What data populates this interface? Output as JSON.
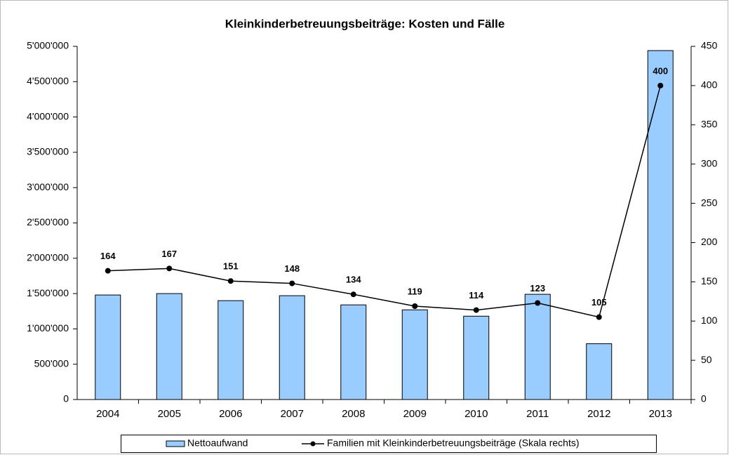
{
  "chart_data": {
    "type": "bar",
    "title": "Kleinkinderbetreuungsbeiträge: Kosten und Fälle",
    "categories": [
      "2004",
      "2005",
      "2006",
      "2007",
      "2008",
      "2009",
      "2010",
      "2011",
      "2012",
      "2013"
    ],
    "series": [
      {
        "name": "Nettoaufwand",
        "type": "bar",
        "color": "#99ccff",
        "axis": "y",
        "values": [
          1480000,
          1500000,
          1400000,
          1470000,
          1340000,
          1270000,
          1180000,
          1490000,
          790000,
          4940000
        ]
      },
      {
        "name": "Familien mit Kleinkinderbetreuungsbeiträge (Skala rechts)",
        "type": "line",
        "color": "#000000",
        "axis": "y2",
        "values": [
          164,
          167,
          151,
          148,
          134,
          119,
          114,
          123,
          105,
          400
        ]
      }
    ],
    "ylim": [
      0,
      5000000
    ],
    "yticks": [
      0,
      {
        "value": 500000,
        "label": "500'000"
      },
      {
        "value": 1000000,
        "label": "1'000'000"
      },
      {
        "value": 1500000,
        "label": "1'500'000"
      },
      {
        "value": 2000000,
        "label": "2'000'000"
      },
      {
        "value": 2500000,
        "label": "2'500'000"
      },
      {
        "value": 3000000,
        "label": "3'000'000"
      },
      {
        "value": 3500000,
        "label": "3'500'000"
      },
      {
        "value": 4000000,
        "label": "4'000'000"
      },
      {
        "value": 4500000,
        "label": "4'500'000"
      },
      {
        "value": 5000000,
        "label": "5'000'000"
      }
    ],
    "y2lim": [
      0,
      450
    ],
    "y2ticks": [
      0,
      50,
      100,
      150,
      200,
      250,
      300,
      350,
      400,
      450
    ],
    "grid": false,
    "legend": "bottom"
  }
}
